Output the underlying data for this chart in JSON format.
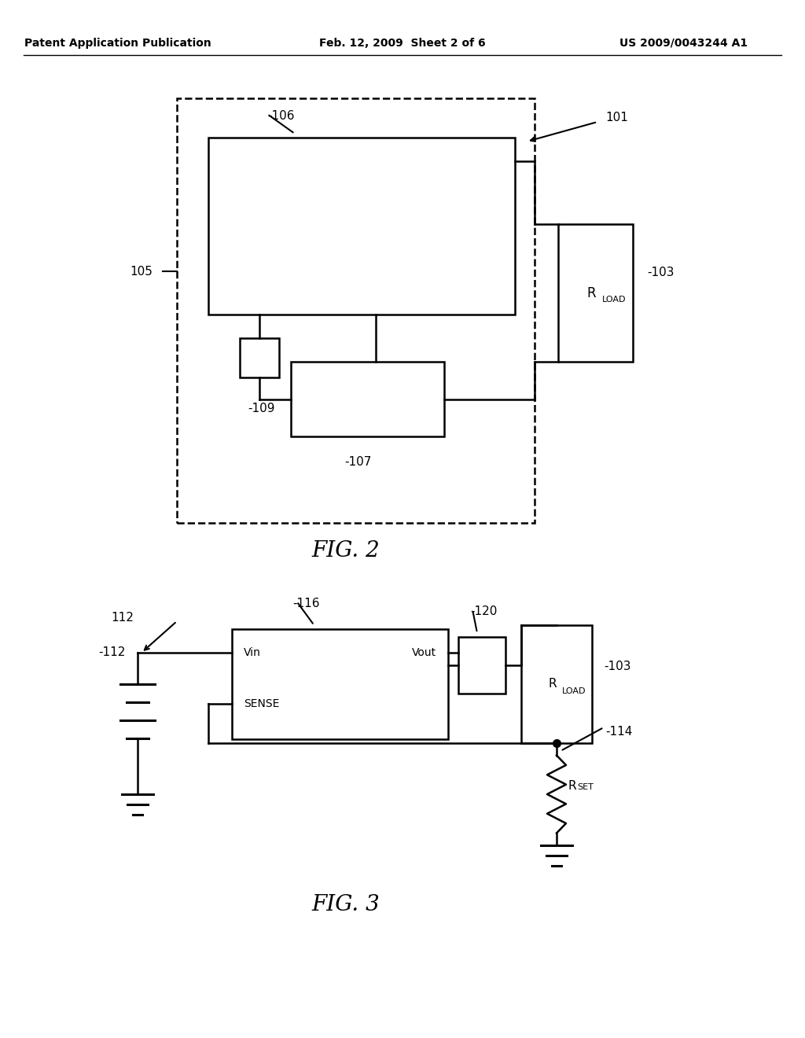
{
  "bg_color": "#ffffff",
  "line_color": "#000000",
  "header_left": "Patent Application Publication",
  "header_mid": "Feb. 12, 2009  Sheet 2 of 6",
  "header_right": "US 2009/0043244 A1",
  "fig2_label": "FIG. 2",
  "fig3_label": "FIG. 3",
  "label_101": "101",
  "label_103_1": "103",
  "label_103_2": "103",
  "label_105": "105",
  "label_106": "106",
  "label_107": "107",
  "label_109": "109",
  "label_112": "112",
  "label_114": "114",
  "label_116": "116",
  "label_120": "120",
  "rload_text1": "R",
  "rload_sub1": "LOAD",
  "rload_text2": "R",
  "rload_sub2": "LOAD",
  "rset_text": "R",
  "rset_sub": "SET",
  "vin_text": "Vin",
  "vout_text": "Vout",
  "sense_text": "SENSE",
  "header_fontsize": 10,
  "label_fontsize": 11,
  "fig_caption_fontsize": 20
}
